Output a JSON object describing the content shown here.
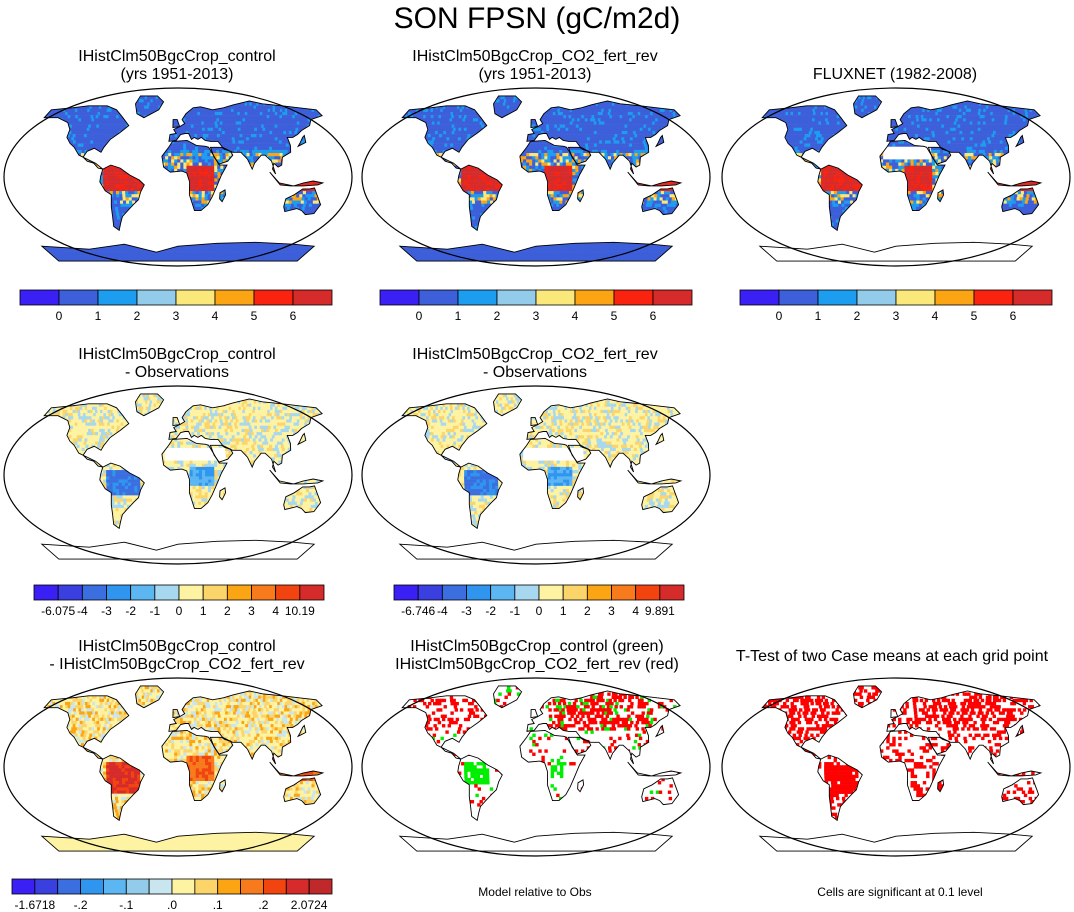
{
  "title": "SON FPSN (gC/m2d)",
  "panels": [
    {
      "id": "p1",
      "title1": "IHistClm50BgcCrop_control",
      "title2": "(yrs 1951-2013)",
      "style": "abs"
    },
    {
      "id": "p2",
      "title1": "IHistClm50BgcCrop_CO2_fert_rev",
      "title2": "(yrs 1951-2013)",
      "style": "abs"
    },
    {
      "id": "p3",
      "title1": "FLUXNET (1982-2008)",
      "title2": "",
      "style": "obs"
    },
    {
      "id": "p4",
      "title1": "IHistClm50BgcCrop_control",
      "title2": "- Observations",
      "style": "bias"
    },
    {
      "id": "p5",
      "title1": "IHistClm50BgcCrop_CO2_fert_rev",
      "title2": "- Observations",
      "style": "bias"
    },
    {
      "id": "p6",
      "title1": "IHistClm50BgcCrop_control",
      "title2": "- IHistClm50BgcCrop_CO2_fert_rev",
      "style": "diff"
    },
    {
      "id": "p7",
      "title1": "IHistClm50BgcCrop_control (green)",
      "title2": "IHistClm50BgcCrop_CO2_fert_rev (red)",
      "style": "compare"
    },
    {
      "id": "p8",
      "title1": "T-Test of two Case means at each grid point",
      "title2": "",
      "style": "ttest"
    }
  ],
  "notes": {
    "model_rel": "Model relative to Obs",
    "significance": "Cells are significant at 0.1 level"
  },
  "chart_data": [
    {
      "type": "colorbar",
      "name": "absolute",
      "colors": [
        "#3b20f5",
        "#3d5fd9",
        "#1c9df0",
        "#93cbea",
        "#fbe87a",
        "#fba514",
        "#fa2310",
        "#d62b2b"
      ],
      "labels": [
        "0",
        "1",
        "2",
        "3",
        "4",
        "5",
        "6"
      ]
    },
    {
      "type": "colorbar",
      "name": "bias_control",
      "colors": [
        "#3b20f5",
        "#3a3fe0",
        "#3b6fe0",
        "#2f95ef",
        "#5bb6f2",
        "#a8d8ef",
        "#fdf3a2",
        "#fbd46a",
        "#fba514",
        "#f77a1d",
        "#f2440f",
        "#d62b2b"
      ],
      "labels": [
        "-6.075",
        "-4",
        "-3",
        "-2",
        "-1",
        "0",
        "1",
        "2",
        "3",
        "4",
        "10.19"
      ]
    },
    {
      "type": "colorbar",
      "name": "bias_co2",
      "colors": [
        "#3b20f5",
        "#3a3fe0",
        "#3b6fe0",
        "#2f95ef",
        "#5bb6f2",
        "#a8d8ef",
        "#fdf3a2",
        "#fbd46a",
        "#fba514",
        "#f77a1d",
        "#f2440f",
        "#d62b2b"
      ],
      "labels": [
        "-6.746",
        "-4",
        "-3",
        "-2",
        "-1",
        "0",
        "1",
        "2",
        "3",
        "4",
        "9.891"
      ]
    },
    {
      "type": "colorbar",
      "name": "difference",
      "colors": [
        "#3b20f5",
        "#3a3fe0",
        "#3b6fe0",
        "#2f95ef",
        "#5bb6f2",
        "#93cbea",
        "#c9e6f0",
        "#fdf3a2",
        "#fbd46a",
        "#fba514",
        "#f77a1d",
        "#f2440f",
        "#d62b2b",
        "#c0292b"
      ],
      "labels": [
        "-1.6718",
        "-.2",
        "-.1",
        ".0",
        ".1",
        ".2",
        "2.0724"
      ]
    }
  ]
}
